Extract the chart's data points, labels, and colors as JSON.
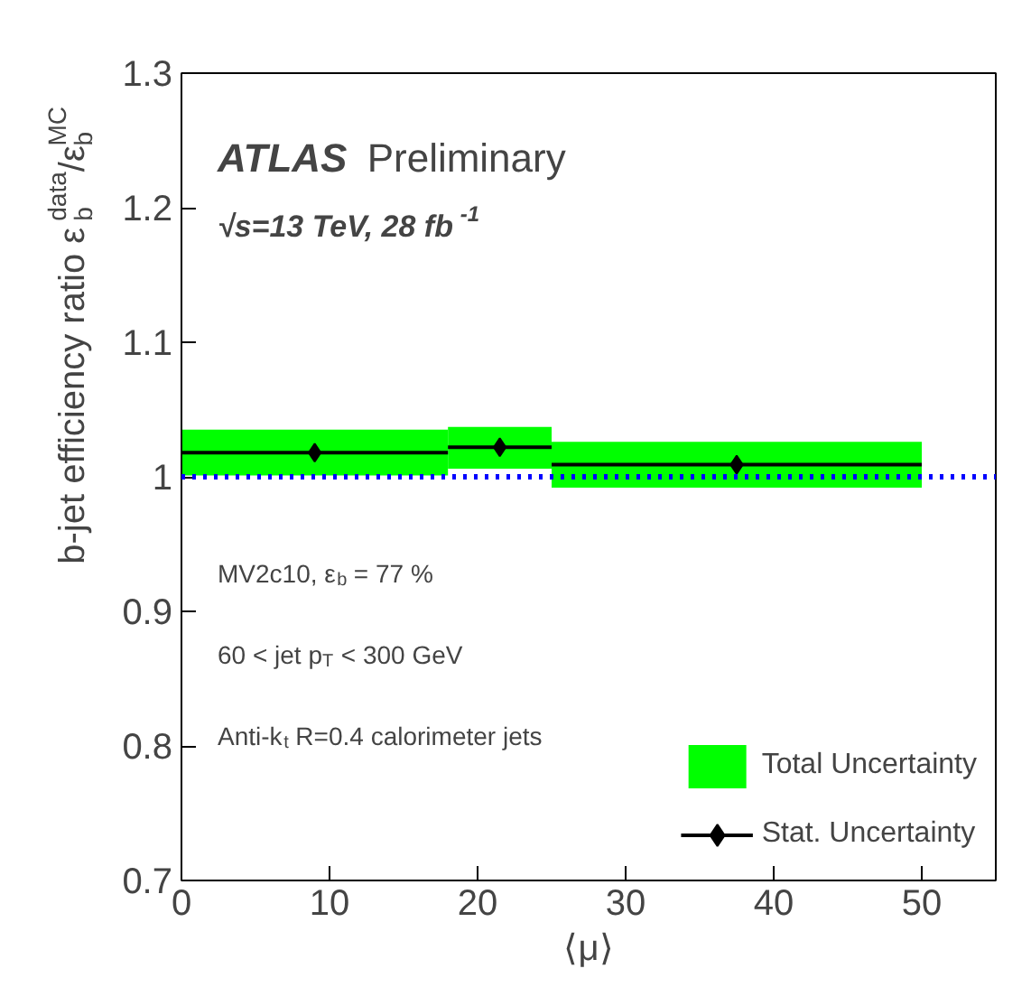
{
  "chart_data": {
    "type": "bar",
    "xlabel": "⟨μ⟩",
    "ylabel": "b-jet efficiency ratio ε$_{b}$$^{data}$/ε$_{b}$$^{MC}$",
    "xlim": [
      0,
      55
    ],
    "xticks": [
      0,
      10,
      20,
      30,
      40,
      50
    ],
    "ylim": [
      0.7,
      1.3
    ],
    "yticks": [
      0.7,
      0.8,
      0.9,
      {
        "value": 1.0,
        "label": "1"
      },
      1.1,
      1.2,
      1.3
    ],
    "series": [
      {
        "name": "Total Uncertainty",
        "color": "#00ff00",
        "x": [
          9,
          21.5,
          37.5
        ],
        "base": [
          1.001,
          1.006,
          0.992
        ],
        "values": [
          0.034,
          0.031,
          0.034
        ],
        "xerrors": [
          9,
          3.5,
          12.5
        ]
      },
      {
        "name": "Stat. Uncertainty",
        "type": "scatter",
        "color": "#000000",
        "marker": "diamond",
        "x": [
          9,
          21.5,
          37.5
        ],
        "values": [
          1.018,
          1.022,
          1.009
        ],
        "xerrors": [
          9,
          3.5,
          12.5
        ],
        "errors": [
          0.003,
          0.003,
          0.003
        ]
      }
    ],
    "ref_lines": [
      {
        "axis": "y",
        "value": 1.0,
        "color": "#0000ff",
        "line_style": "dotted"
      }
    ],
    "annotations": [
      "ATLAS Preliminary",
      "√s=13 TeV, 28 fb$^{-1}$",
      "MV2c10, ε$_{b}$ = 77 %",
      "60 < jet p$_{T}$ < 300 GeV",
      "Anti-k$_{t}$ R=0.4 calorimeter jets"
    ],
    "legend": "bottom right",
    "grid": false
  }
}
